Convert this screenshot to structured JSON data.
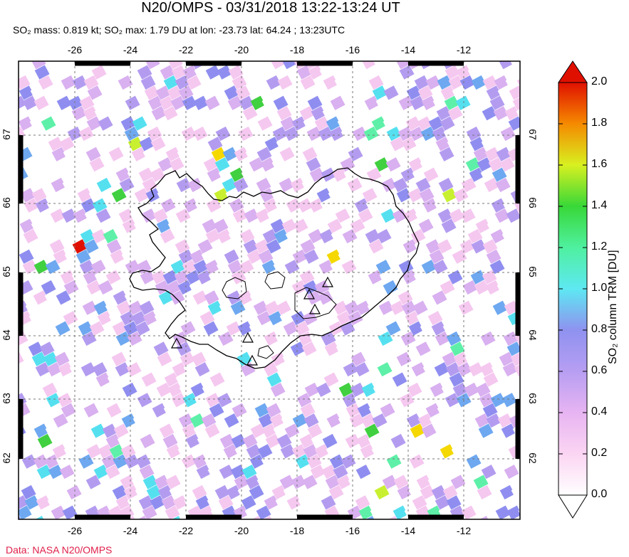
{
  "header": {
    "title": "N20/OMPS - 03/31/2018 13:22-13:24 UT",
    "subtitle": "SO₂ mass: 0.819 kt; SO₂ max: 1.79 DU at lon: -23.73 lat: 64.24 ; 13:23UTC"
  },
  "credit": "Data: NASA N20/OMPS",
  "map": {
    "lon_ticks": [
      "-26",
      "-24",
      "-22",
      "-20",
      "-18",
      "-16",
      "-14",
      "-12"
    ],
    "lat_ticks": [
      "67",
      "66",
      "65",
      "64",
      "63",
      "62"
    ],
    "grid": "dashed",
    "land_outline": "Iceland",
    "volcano_markers": 6
  },
  "colorbar": {
    "label": "SO₂ column TRM [DU]",
    "ticks": [
      "2.0",
      "1.8",
      "1.6",
      "1.4",
      "1.2",
      "1.0",
      "0.8",
      "0.6",
      "0.4",
      "0.2",
      "0.0"
    ],
    "min": 0.0,
    "max": 2.0,
    "colors": [
      "#ffffff",
      "#f5c8f0",
      "#d9b0f0",
      "#b39cf0",
      "#8f8ef0",
      "#6ea8f0",
      "#55e0f0",
      "#5ef0a8",
      "#40d040",
      "#c8f030",
      "#f5d800",
      "#f59a00",
      "#f04000",
      "#e01000"
    ]
  }
}
